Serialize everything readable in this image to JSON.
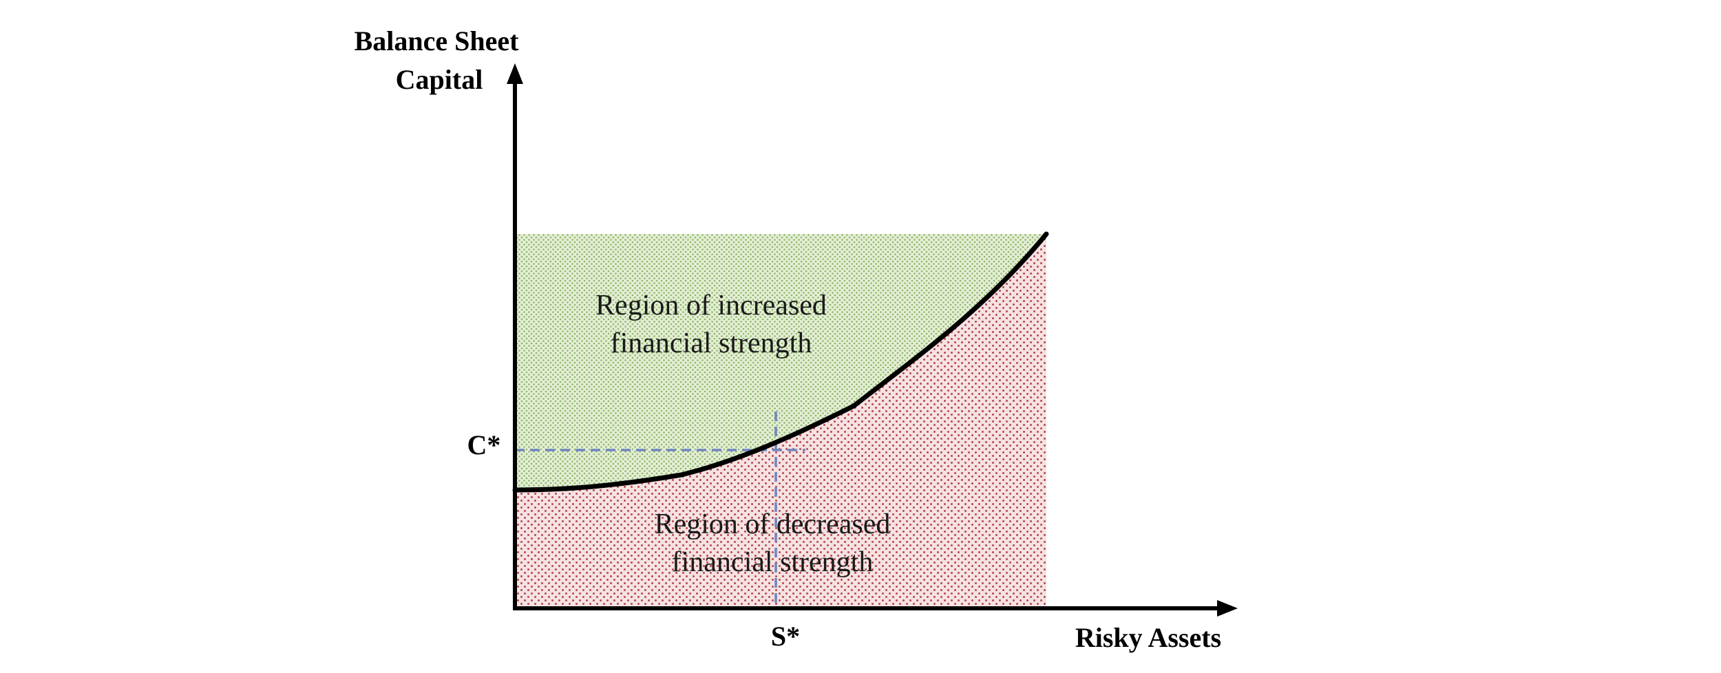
{
  "y_axis_title": {
    "line1": "Balance Sheet",
    "line2": "Capital"
  },
  "x_axis_title": "Risky Assets",
  "markers": {
    "c_star": "C*",
    "s_star": "S*"
  },
  "regions": {
    "increased": {
      "line1": "Region of increased",
      "line2": "financial strength",
      "pattern_color": "#8fb56a",
      "fill_color": "#e3eed4"
    },
    "decreased": {
      "line1": "Region of decreased",
      "line2": "financial strength",
      "pattern_color": "#b5484f",
      "fill_color": "#f6e2e2"
    }
  },
  "colors": {
    "axis": "#000000",
    "curve": "#000000",
    "guide_lines": "#6f86c0"
  }
}
